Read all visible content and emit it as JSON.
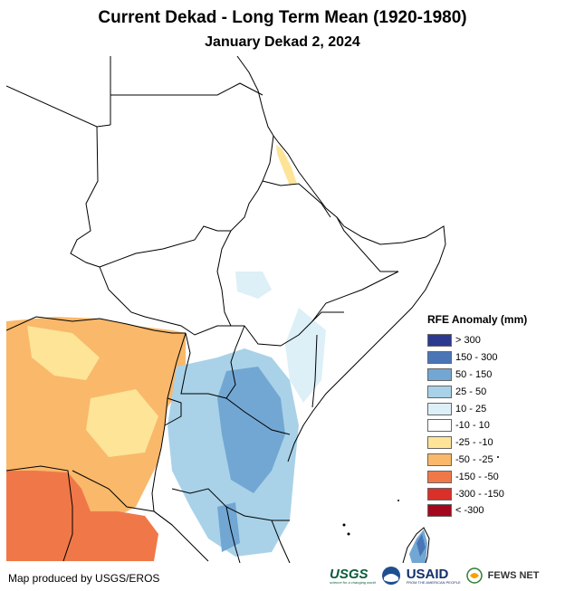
{
  "header": {
    "title": "Current Dekad - Long Term Mean (1920-1980)",
    "subtitle": "January Dekad 2, 2024"
  },
  "legend": {
    "title": "RFE Anomaly (mm)",
    "items": [
      {
        "label": "> 300",
        "color": "#2b3a8f"
      },
      {
        "label": "150 - 300",
        "color": "#4a76b8"
      },
      {
        "label": "50 - 150",
        "color": "#72a7d3"
      },
      {
        "label": "25 - 50",
        "color": "#a9d2e8"
      },
      {
        "label": "10 - 25",
        "color": "#ddeff7"
      },
      {
        "label": "-10 - 10",
        "color": "#ffffff"
      },
      {
        "label": "-25 - -10",
        "color": "#fde497"
      },
      {
        "label": "-50 - -25",
        "color": "#f9b86a"
      },
      {
        "label": "-150 - -50",
        "color": "#f07848"
      },
      {
        "label": "-300 - -150",
        "color": "#d9302a"
      },
      {
        "label": "< -300",
        "color": "#a3081c"
      }
    ]
  },
  "footer": {
    "credit": "Map produced by USGS/EROS",
    "logos": {
      "usgs": "USGS",
      "usgs_tagline": "science for a changing world",
      "usaid": "USAID",
      "usaid_tagline": "FROM THE AMERICAN PEOPLE",
      "fews": "FEWS NET"
    }
  },
  "colors": {
    "border": "#000000",
    "sea": "#ffffff"
  }
}
